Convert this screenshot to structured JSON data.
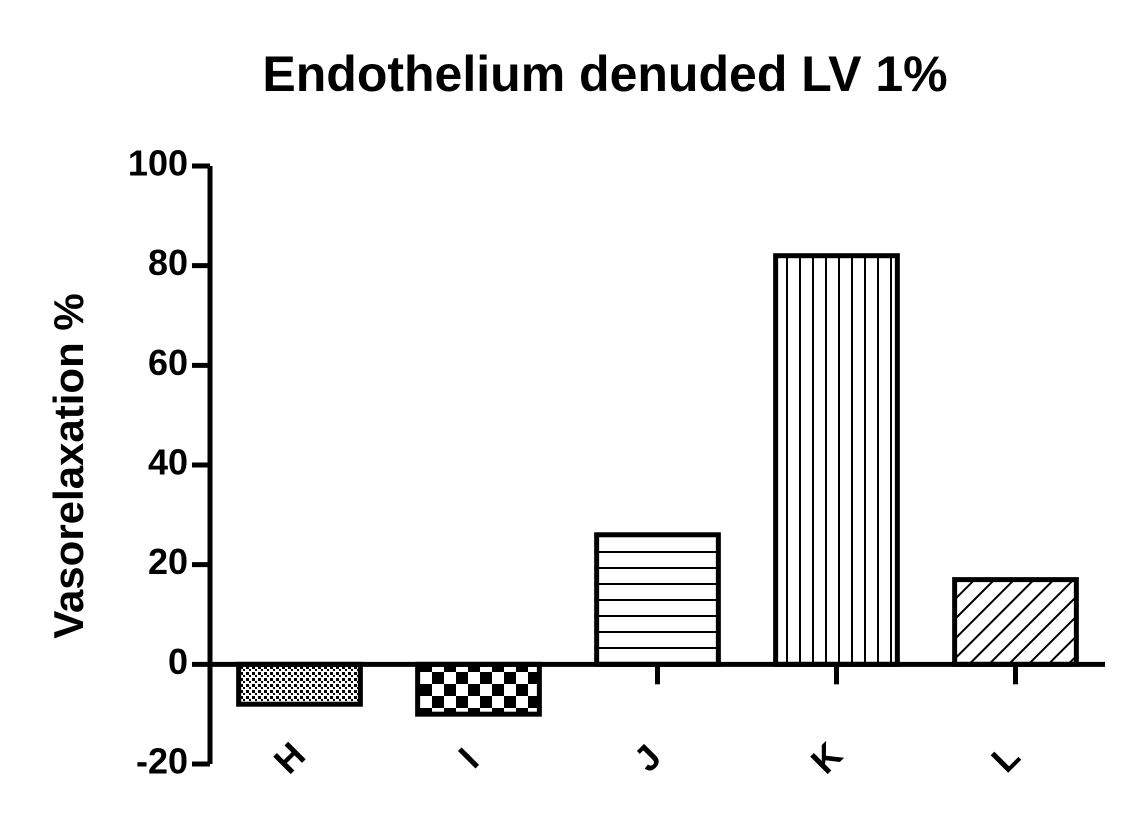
{
  "chart_data": {
    "type": "bar",
    "title": "Endothelium denuded LV 1%",
    "ylabel": "Vasorelaxation %",
    "categories": [
      "H",
      "I",
      "J",
      "K",
      "L"
    ],
    "values": [
      -8,
      -10,
      26,
      82,
      17
    ],
    "color": "#000000",
    "patterns": [
      "dots",
      "checker",
      "horizontal",
      "vertical",
      "diagonal"
    ],
    "ylim": [
      -20,
      100
    ],
    "yticks": [
      -20,
      0,
      20,
      40,
      60,
      80,
      100
    ],
    "grid": false
  }
}
